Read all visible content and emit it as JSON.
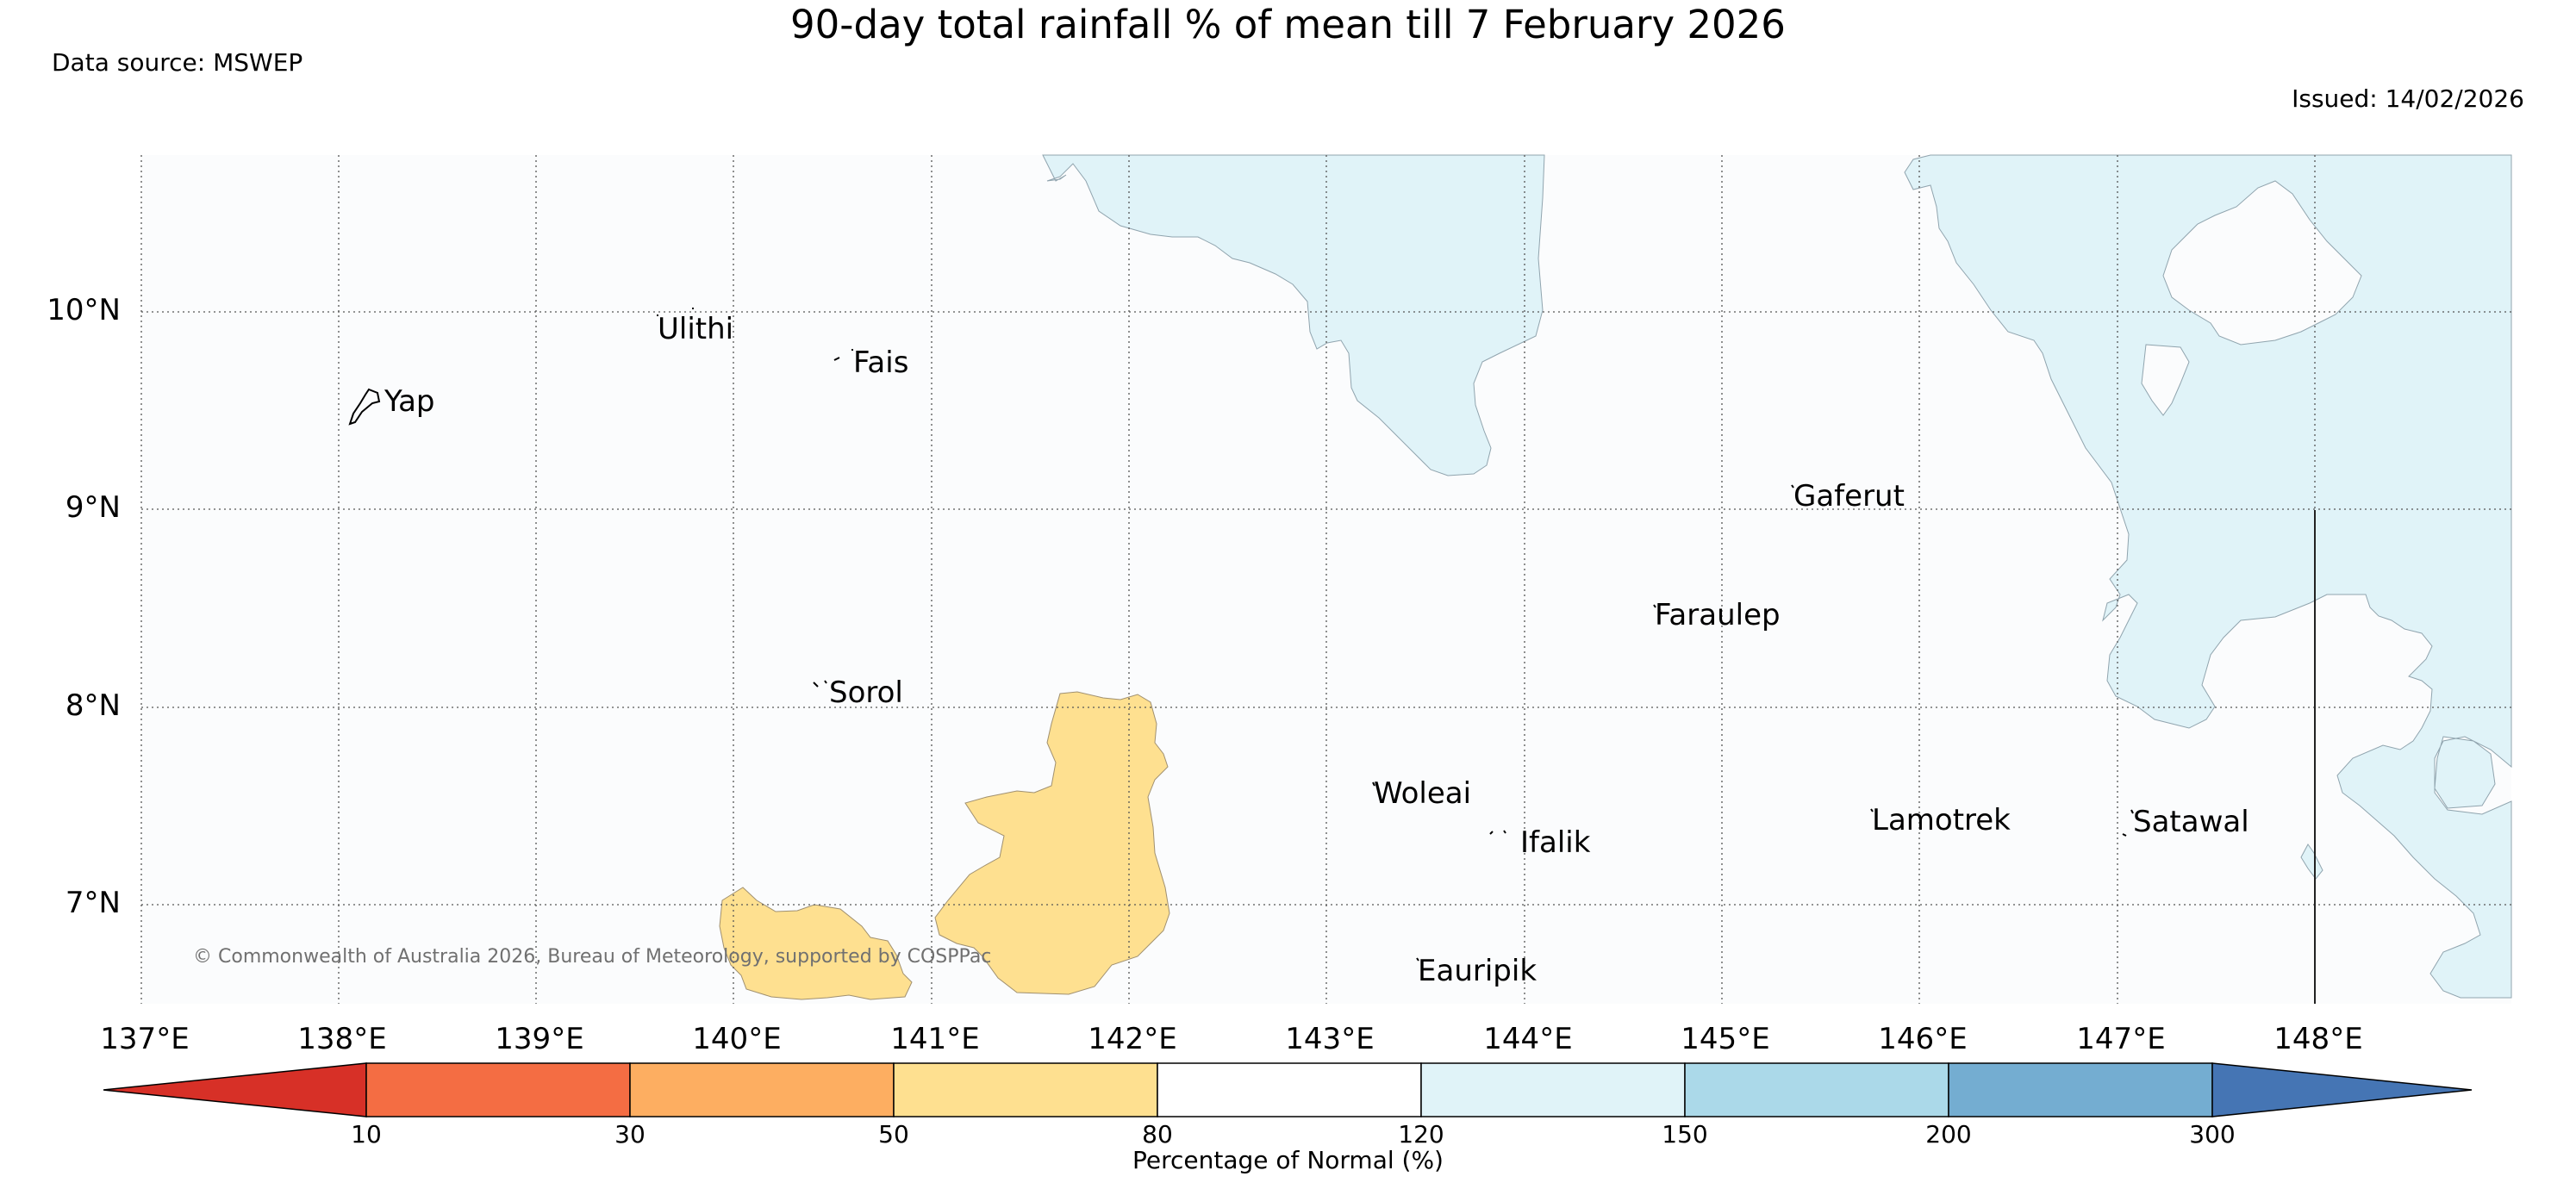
{
  "header": {
    "title": "90-day total rainfall % of mean till 7 February 2026",
    "source": "Data source: MSWEP",
    "issued": "Issued: 14/02/2026"
  },
  "map": {
    "extent": {
      "lon_min": 137.0,
      "lon_max": 148.99,
      "lat_min": 6.53,
      "lat_max": 10.8
    },
    "lon_ticks": [
      "137°E",
      "138°E",
      "139°E",
      "140°E",
      "141°E",
      "142°E",
      "143°E",
      "144°E",
      "145°E",
      "146°E",
      "147°E",
      "148°E"
    ],
    "lat_ticks": [
      "10°N",
      "9°N",
      "8°N",
      "7°N"
    ],
    "places": {
      "yap": "Yap",
      "ulithi": "Ulithi",
      "fais": "Fais",
      "sorol": "Sorol",
      "gaferut": "Gaferut",
      "faraulep": "Faraulep",
      "woleai": "Woleai",
      "ifalik": "Ifalik",
      "eauripik": "Eauripik",
      "lamotrek": "Lamotrek",
      "satawal": "Satawal"
    },
    "regions": [
      {
        "name": "below-normal-west",
        "category": "50-80"
      },
      {
        "name": "below-normal-central",
        "category": "50-80"
      },
      {
        "name": "above-normal-north",
        "category": "120-150"
      },
      {
        "name": "above-normal-east",
        "category": "120-150"
      }
    ],
    "copyright": "© Commonwealth of Australia 2026, Bureau of Meteorology, supported by COSPPac"
  },
  "colorbar": {
    "label": "Percentage of Normal (%)",
    "ticks": [
      "10",
      "30",
      "50",
      "80",
      "120",
      "150",
      "200",
      "300"
    ],
    "colors": [
      "#d73027",
      "#f46d43",
      "#fdae61",
      "#fee090",
      "#ffffff",
      "#e0f3f8",
      "#abd9e9",
      "#74add1",
      "#4575b4"
    ]
  }
}
